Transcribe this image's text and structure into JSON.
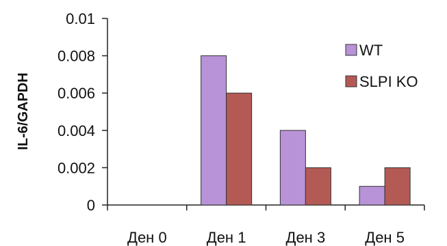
{
  "chart_data": {
    "type": "bar",
    "ylabel": "IL-6/GAPDH",
    "xlabel": "",
    "categories": [
      "Ден 0",
      "Ден 1",
      "Ден 3",
      "Ден 5"
    ],
    "ylim": [
      0,
      0.01
    ],
    "yticks": [
      "0",
      "0.002",
      "0.004",
      "0.006",
      "0.008",
      "0.01"
    ],
    "ytick_values": [
      0,
      0.002,
      0.004,
      0.006,
      0.008,
      0.01
    ],
    "grid": false,
    "legend_position": "right",
    "series": [
      {
        "name": "WT",
        "color": "#b893d8",
        "values": [
          0,
          0.008,
          0.004,
          0.001
        ]
      },
      {
        "name": "SLPI KO",
        "color": "#b45a55",
        "values": [
          0,
          0.006,
          0.002,
          0.002
        ]
      }
    ]
  }
}
